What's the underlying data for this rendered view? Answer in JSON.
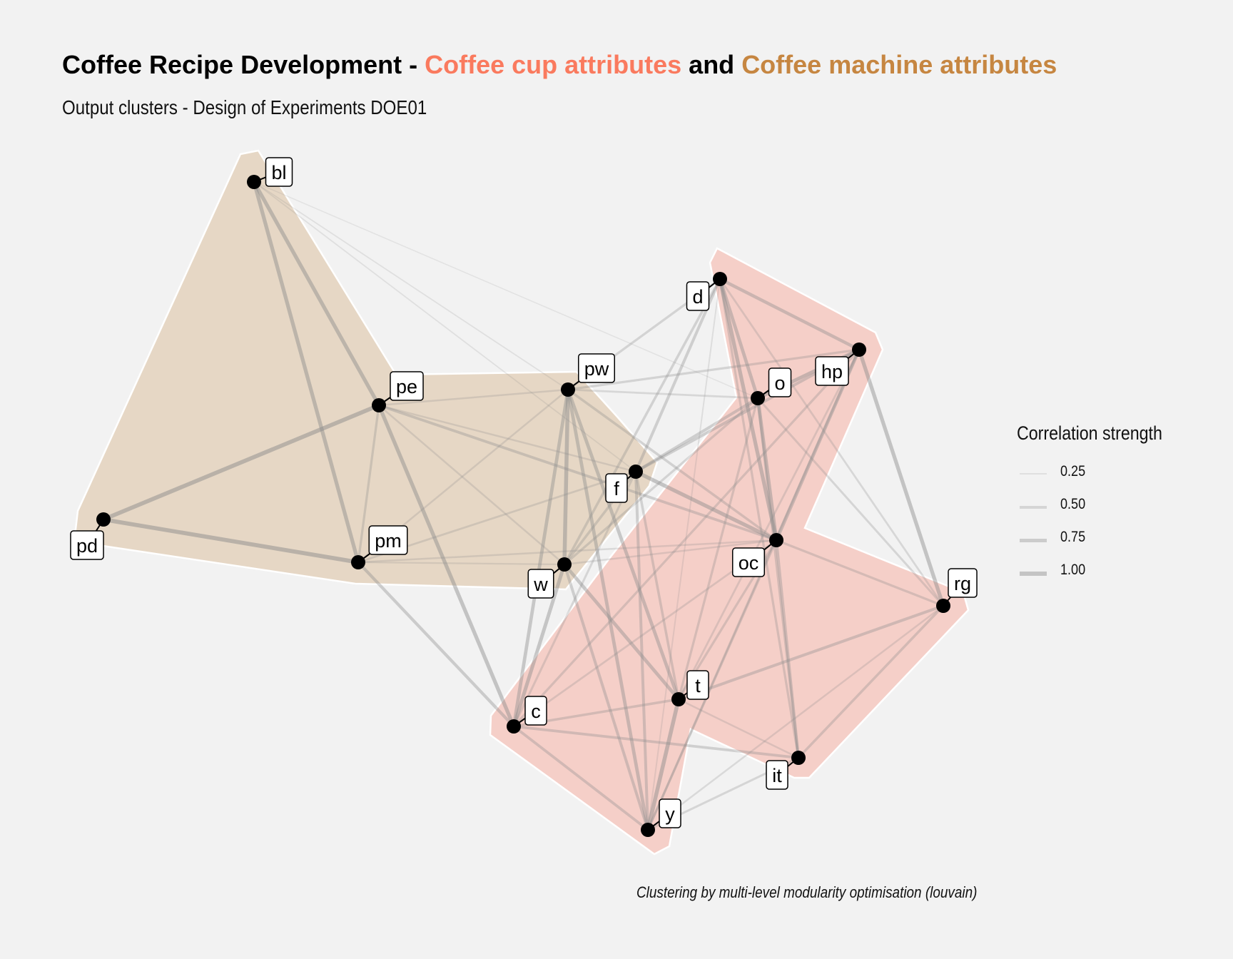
{
  "title": {
    "prefix": "Coffee Recipe Development - ",
    "cluster1": "Coffee cup attributes",
    "connector": " and ",
    "cluster2": "Coffee machine attributes"
  },
  "subtitle": "Output clusters - Design of Experiments DOE01",
  "caption": "Clustering by multi-level modularity optimisation (louvain)",
  "colors": {
    "background": "#f2f2f2",
    "cup_cluster": "#fa7a5e",
    "machine_cluster": "#c68641",
    "cup_hull": "#f5cfc8",
    "machine_hull": "#e6d7c5",
    "edge": "#8c8c8c",
    "node": "#000000"
  },
  "legend": {
    "title": "Correlation strength",
    "items": [
      {
        "label": "0.25",
        "value": 0.25
      },
      {
        "label": "0.50",
        "value": 0.5
      },
      {
        "label": "0.75",
        "value": 0.75
      },
      {
        "label": "1.00",
        "value": 1.0
      }
    ]
  },
  "clusters": [
    {
      "name": "Coffee cup attributes",
      "members": [
        "d",
        "hp",
        "o",
        "oc",
        "rg",
        "it",
        "t",
        "y",
        "c"
      ]
    },
    {
      "name": "Coffee machine attributes",
      "members": [
        "bl",
        "pe",
        "pd",
        "pm",
        "pw",
        "f",
        "w"
      ]
    }
  ],
  "nodes": [
    {
      "id": "bl"
    },
    {
      "id": "pe"
    },
    {
      "id": "pd"
    },
    {
      "id": "pm"
    },
    {
      "id": "pw"
    },
    {
      "id": "f"
    },
    {
      "id": "w"
    },
    {
      "id": "c"
    },
    {
      "id": "d"
    },
    {
      "id": "o"
    },
    {
      "id": "hp"
    },
    {
      "id": "oc"
    },
    {
      "id": "rg"
    },
    {
      "id": "t"
    },
    {
      "id": "it"
    },
    {
      "id": "y"
    }
  ],
  "edges": [
    {
      "source": "bl",
      "target": "pe",
      "weight": 0.85
    },
    {
      "source": "bl",
      "target": "pm",
      "weight": 0.85
    },
    {
      "source": "bl",
      "target": "pw",
      "weight": 0.15
    },
    {
      "source": "bl",
      "target": "f",
      "weight": 0.15
    },
    {
      "source": "bl",
      "target": "o",
      "weight": 0.1
    },
    {
      "source": "pe",
      "target": "pd",
      "weight": 0.95
    },
    {
      "source": "pe",
      "target": "pm",
      "weight": 0.45
    },
    {
      "source": "pe",
      "target": "c",
      "weight": 0.85
    },
    {
      "source": "pe",
      "target": "pw",
      "weight": 0.3
    },
    {
      "source": "pe",
      "target": "oc",
      "weight": 0.55
    },
    {
      "source": "pe",
      "target": "w",
      "weight": 0.3
    },
    {
      "source": "pe",
      "target": "f",
      "weight": 0.3
    },
    {
      "source": "pd",
      "target": "pm",
      "weight": 0.95
    },
    {
      "source": "pm",
      "target": "c",
      "weight": 0.65
    },
    {
      "source": "pm",
      "target": "f",
      "weight": 0.35
    },
    {
      "source": "pm",
      "target": "pw",
      "weight": 0.3
    },
    {
      "source": "pm",
      "target": "w",
      "weight": 0.25
    },
    {
      "source": "pm",
      "target": "oc",
      "weight": 0.3
    },
    {
      "source": "pw",
      "target": "w",
      "weight": 0.9
    },
    {
      "source": "pw",
      "target": "t",
      "weight": 0.75
    },
    {
      "source": "pw",
      "target": "y",
      "weight": 0.75
    },
    {
      "source": "pw",
      "target": "c",
      "weight": 0.75
    },
    {
      "source": "pw",
      "target": "oc",
      "weight": 0.5
    },
    {
      "source": "pw",
      "target": "d",
      "weight": 0.45
    },
    {
      "source": "pw",
      "target": "hp",
      "weight": 0.45
    },
    {
      "source": "pw",
      "target": "o",
      "weight": 0.35
    },
    {
      "source": "f",
      "target": "oc",
      "weight": 0.85
    },
    {
      "source": "f",
      "target": "d",
      "weight": 0.6
    },
    {
      "source": "f",
      "target": "o",
      "weight": 0.6
    },
    {
      "source": "f",
      "target": "hp",
      "weight": 0.6
    },
    {
      "source": "f",
      "target": "y",
      "weight": 0.6
    },
    {
      "source": "f",
      "target": "t",
      "weight": 0.5
    },
    {
      "source": "f",
      "target": "w",
      "weight": 0.5
    },
    {
      "source": "f",
      "target": "c",
      "weight": 0.4
    },
    {
      "source": "w",
      "target": "c",
      "weight": 0.8
    },
    {
      "source": "w",
      "target": "t",
      "weight": 0.75
    },
    {
      "source": "w",
      "target": "y",
      "weight": 0.6
    },
    {
      "source": "w",
      "target": "oc",
      "weight": 0.3
    },
    {
      "source": "w",
      "target": "d",
      "weight": 0.5
    },
    {
      "source": "w",
      "target": "o",
      "weight": 0.45
    },
    {
      "source": "d",
      "target": "o",
      "weight": 0.75
    },
    {
      "source": "d",
      "target": "hp",
      "weight": 0.7
    },
    {
      "source": "d",
      "target": "oc",
      "weight": 0.85
    },
    {
      "source": "d",
      "target": "it",
      "weight": 0.45
    },
    {
      "source": "d",
      "target": "rg",
      "weight": 0.35
    },
    {
      "source": "d",
      "target": "y",
      "weight": 0.2
    },
    {
      "source": "o",
      "target": "oc",
      "weight": 0.8
    },
    {
      "source": "o",
      "target": "hp",
      "weight": 0.8
    },
    {
      "source": "o",
      "target": "it",
      "weight": 0.5
    },
    {
      "source": "o",
      "target": "rg",
      "weight": 0.4
    },
    {
      "source": "o",
      "target": "t",
      "weight": 0.45
    },
    {
      "source": "hp",
      "target": "oc",
      "weight": 0.75
    },
    {
      "source": "hp",
      "target": "rg",
      "weight": 0.85
    },
    {
      "source": "hp",
      "target": "y",
      "weight": 0.4
    },
    {
      "source": "hp",
      "target": "t",
      "weight": 0.35
    },
    {
      "source": "hp",
      "target": "c",
      "weight": 0.45
    },
    {
      "source": "oc",
      "target": "it",
      "weight": 0.6
    },
    {
      "source": "oc",
      "target": "rg",
      "weight": 0.45
    },
    {
      "source": "oc",
      "target": "t",
      "weight": 0.45
    },
    {
      "source": "oc",
      "target": "y",
      "weight": 0.45
    },
    {
      "source": "oc",
      "target": "c",
      "weight": 0.35
    },
    {
      "source": "rg",
      "target": "t",
      "weight": 0.6
    },
    {
      "source": "rg",
      "target": "it",
      "weight": 0.5
    },
    {
      "source": "rg",
      "target": "y",
      "weight": 0.3
    },
    {
      "source": "t",
      "target": "y",
      "weight": 0.9
    },
    {
      "source": "t",
      "target": "c",
      "weight": 0.5
    },
    {
      "source": "t",
      "target": "it",
      "weight": 0.3
    },
    {
      "source": "c",
      "target": "y",
      "weight": 0.55
    },
    {
      "source": "c",
      "target": "it",
      "weight": 0.55
    },
    {
      "source": "y",
      "target": "it",
      "weight": 0.4
    }
  ]
}
